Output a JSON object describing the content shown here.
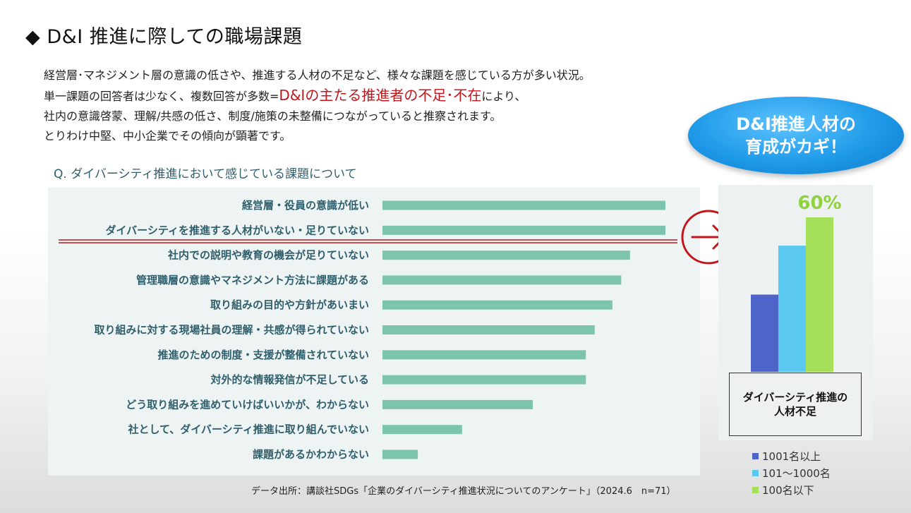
{
  "title": "◆ D&I 推進に際しての職場課題",
  "description": {
    "line1": "経営層･マネジメント層の意識の低さや、推進する人材の不足など、様々な課題を感じている方が多い状況。",
    "line2_prefix": "単一課題の回答者は少なく、複数回答が多数=",
    "line2_highlight": "D&Iの主たる推進者の不足･不在",
    "line2_suffix": "により、",
    "line3": "社内の意識啓蒙、理解/共感の低さ、制度/施策の未整備につながっていると推察されます。",
    "line4": "とりわけ中堅、中小企業でその傾向が顕著です。"
  },
  "question": "Q. ダイバーシティ推進において感じている課題について",
  "source": "データ出所：講談社SDGs「企業のダイバーシティ推進状況についてのアンケート」（2024.6　n=71）",
  "callout": {
    "line1": "D&I推進人材の",
    "line2": "育成がカギ！"
  },
  "colors": {
    "bar": "#7cc4ad",
    "label": "#2f5f6c",
    "accent_red": "#c0161c",
    "bubble": "#1e9ae8"
  },
  "chart_data": [
    {
      "type": "bar",
      "orientation": "horizontal",
      "categories": [
        "経営層・役員の意識が低い",
        "ダイバーシティを推進する人材がいない・足りていない",
        "社内での説明や教育の機会が足りていない",
        "管理職層の意識やマネジメント方法に課題がある",
        "取り組みの目的や方針があいまい",
        "取り組みに対する現場社員の理解・共感が得られていない",
        "推進のための制度・支援が整備されていない",
        "対外的な情報発信が不足している",
        "どう取り組みを進めていけばいいかが、わからない",
        "社として、ダイバーシティ推進に取り組んでいない",
        "課題があるかわからない"
      ],
      "values": [
        32,
        32,
        28,
        27,
        26,
        24,
        23,
        23,
        17,
        9,
        4
      ],
      "xlim": [
        0,
        33
      ],
      "grid": false,
      "legend": "none"
    },
    {
      "type": "bar",
      "categories": [
        "ダイバーシティ推進の人材不足"
      ],
      "series": [
        {
          "name": "1001名以上",
          "values": [
            30
          ],
          "color": "#4e64c8"
        },
        {
          "name": "101～1000名",
          "values": [
            49
          ],
          "color": "#5bc8f0"
        },
        {
          "name": "100名以下",
          "values": [
            60
          ],
          "color": "#a6e05a"
        }
      ],
      "data_label": "60%",
      "ylim": [
        0,
        70
      ],
      "xlabel": "ダイバーシティ推進の人材不足",
      "legend": "bottom"
    }
  ]
}
